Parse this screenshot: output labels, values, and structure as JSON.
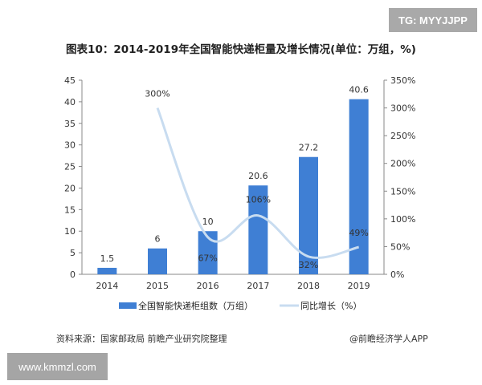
{
  "watermark_tg": "TG: MYYJJPP",
  "watermark_site": "www.kmmzl.com",
  "chart_data": {
    "type": "bar",
    "title": "图表10：2014-2019年全国智能快递柜量及增长情况(单位：万组，%)",
    "categories": [
      "2014",
      "2015",
      "2016",
      "2017",
      "2018",
      "2019"
    ],
    "series": [
      {
        "name": "全国智能快递柜组数（万组）",
        "type": "bar",
        "axis": "left",
        "values": [
          1.5,
          6,
          10,
          20.6,
          27.2,
          40.6
        ],
        "labels": [
          "1.5",
          "6",
          "10",
          "20.6",
          "27.2",
          "40.6"
        ],
        "color": "#3f7fd4"
      },
      {
        "name": "同比增长（%）",
        "type": "line",
        "axis": "right",
        "values": [
          null,
          300,
          67,
          106,
          32,
          49
        ],
        "labels": [
          "",
          "300%",
          "67%",
          "106%",
          "32%",
          "49%"
        ],
        "color": "#c8dcf0"
      }
    ],
    "ylim": [
      0,
      45
    ],
    "yticks": [
      "0",
      "5",
      "10",
      "15",
      "20",
      "25",
      "30",
      "35",
      "40",
      "45"
    ],
    "y2lim": [
      0,
      350
    ],
    "y2ticks": [
      "0%",
      "50%",
      "100%",
      "150%",
      "200%",
      "250%",
      "300%",
      "350%"
    ],
    "legend": "bottom",
    "grid": false
  },
  "source": "资料来源：国家邮政局 前瞻产业研究院整理",
  "credit": "@前瞻经济学人APP"
}
